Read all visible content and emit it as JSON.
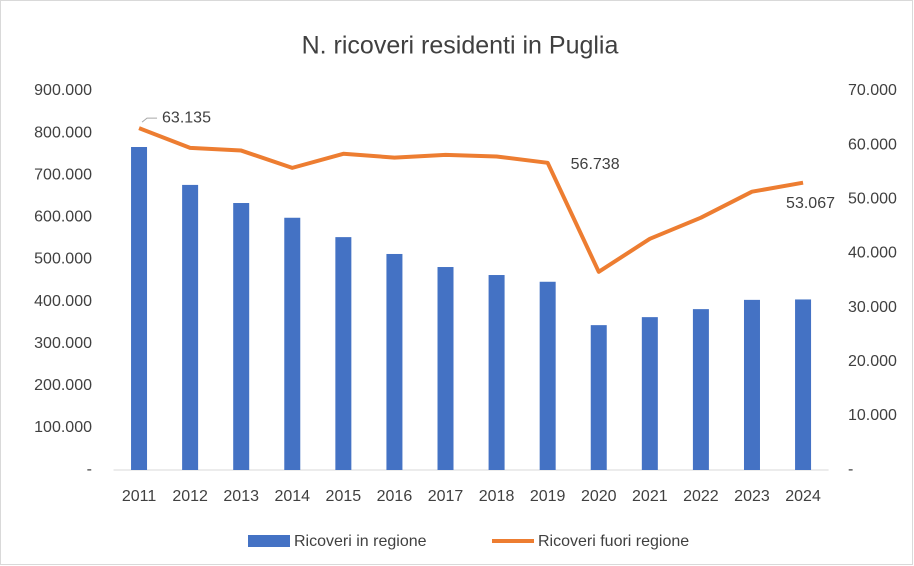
{
  "chart_data": {
    "type": "bar_line",
    "title": "N. ricoveri residenti in Puglia",
    "categories": [
      "2011",
      "2012",
      "2013",
      "2014",
      "2015",
      "2016",
      "2017",
      "2018",
      "2019",
      "2020",
      "2021",
      "2022",
      "2023",
      "2024"
    ],
    "series": [
      {
        "name": "Ricoveri in regione",
        "type": "bar",
        "color": "#4472c4",
        "axis": "y",
        "values": [
          767000,
          677000,
          634000,
          599000,
          553000,
          513000,
          482000,
          463000,
          447000,
          344000,
          363000,
          382000,
          404000,
          405000
        ]
      },
      {
        "name": "Ricoveri fuori regione",
        "type": "line",
        "color": "#ed7d31",
        "axis": "y2",
        "values": [
          63135,
          59500,
          59000,
          55800,
          58400,
          57700,
          58200,
          57900,
          56738,
          36600,
          42700,
          46600,
          51400,
          53067
        ],
        "value_labels": [
          "63.135",
          null,
          null,
          null,
          null,
          null,
          null,
          null,
          "56.738",
          null,
          null,
          null,
          null,
          "53.067"
        ]
      }
    ],
    "ylim": [
      0,
      900000
    ],
    "yticks": [
      {
        "value": 0,
        "label": "-"
      },
      {
        "value": 100000,
        "label": "100.000"
      },
      {
        "value": 200000,
        "label": "200.000"
      },
      {
        "value": 300000,
        "label": "300.000"
      },
      {
        "value": 400000,
        "label": "400.000"
      },
      {
        "value": 500000,
        "label": "500.000"
      },
      {
        "value": 600000,
        "label": "600.000"
      },
      {
        "value": 700000,
        "label": "700.000"
      },
      {
        "value": 800000,
        "label": "800.000"
      },
      {
        "value": 900000,
        "label": "900.000"
      }
    ],
    "y2lim": [
      0,
      70000
    ],
    "y2ticks": [
      {
        "value": 0,
        "label": "-"
      },
      {
        "value": 10000,
        "label": "10.000"
      },
      {
        "value": 20000,
        "label": "20.000"
      },
      {
        "value": 30000,
        "label": "30.000"
      },
      {
        "value": 40000,
        "label": "40.000"
      },
      {
        "value": 50000,
        "label": "50.000"
      },
      {
        "value": 60000,
        "label": "60.000"
      },
      {
        "value": 70000,
        "label": "70.000"
      }
    ],
    "legend": "bottom"
  }
}
